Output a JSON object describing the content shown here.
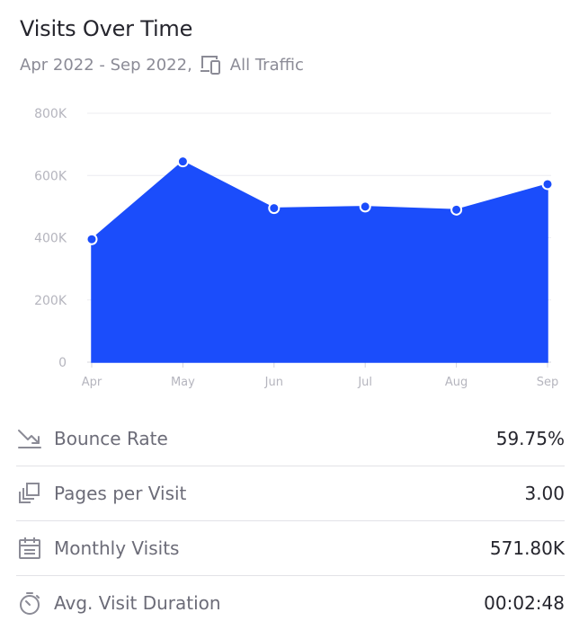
{
  "header": {
    "title": "Visits Over Time",
    "date_range": "Apr 2022 - Sep 2022,",
    "traffic": "All Traffic"
  },
  "colors": {
    "accent": "#1b4dfb",
    "grid": "#ececf0",
    "axis_text": "#b5b5be",
    "icon": "#8b8b96"
  },
  "chart_data": {
    "type": "area",
    "title": "Visits Over Time",
    "categories": [
      "Apr",
      "May",
      "Jun",
      "Jul",
      "Aug",
      "Sep"
    ],
    "values": [
      395000,
      645000,
      495000,
      500000,
      490000,
      572000
    ],
    "y_ticks": [
      0,
      200000,
      400000,
      600000,
      800000
    ],
    "y_tick_labels": [
      "0",
      "200K",
      "400K",
      "600K",
      "800K"
    ],
    "ylim": [
      0,
      800000
    ],
    "grid": true
  },
  "metrics": [
    {
      "icon": "bounce-rate-icon",
      "label": "Bounce Rate",
      "value": "59.75%"
    },
    {
      "icon": "pages-per-visit-icon",
      "label": "Pages per Visit",
      "value": "3.00"
    },
    {
      "icon": "calendar-icon",
      "label": "Monthly Visits",
      "value": "571.80K"
    },
    {
      "icon": "stopwatch-icon",
      "label": "Avg. Visit Duration",
      "value": "00:02:48"
    }
  ]
}
